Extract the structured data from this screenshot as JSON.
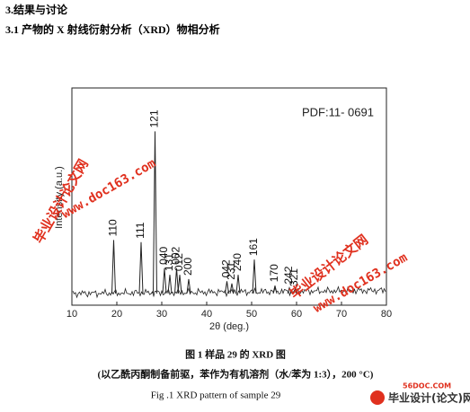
{
  "header": {
    "section": "3.结果与讨论",
    "subsection": "3.1 产物的 X 射线衍射分析（XRD）物相分析"
  },
  "chart_data": {
    "type": "spectrum",
    "annotation": "PDF:11- 0691",
    "xlabel": "2θ (deg.)",
    "ylabel": "Intensity (a.u.)",
    "x": [
      19.3,
      25.4,
      28.5,
      30.6,
      31.8,
      33.3,
      34.0,
      36.0,
      44.5,
      45.6,
      47.0,
      50.6,
      55.2,
      58.4,
      59.6
    ],
    "values": [
      30,
      29,
      80,
      17,
      14,
      17,
      14,
      12,
      11,
      10,
      14,
      21,
      9,
      8,
      7
    ],
    "peak_labels": [
      "110",
      "111",
      "121",
      "040",
      "131",
      "002",
      "012",
      "200",
      "042",
      "231",
      "240",
      "161",
      "170",
      "242",
      "321"
    ],
    "color": "#222222",
    "xlim": [
      10,
      80
    ],
    "xticks": [
      10,
      20,
      30,
      40,
      50,
      60,
      70,
      80
    ],
    "ylim": [
      0,
      100
    ]
  },
  "figure": {
    "caption_cn": "图 1  样品 29 的 XRD 图",
    "note": "(以乙酰丙酮制备前驱，苯作为有机溶剂（水/苯为 1:3），200 °C)",
    "caption_en": "Fig .1 XRD pattern of sample 29"
  },
  "watermarks": [
    "毕业设计论文网",
    "www.doc163.com",
    "毕业设计论文网",
    "www.doc163.com",
    "56DOC.COM",
    "毕业设计(论文)网"
  ]
}
